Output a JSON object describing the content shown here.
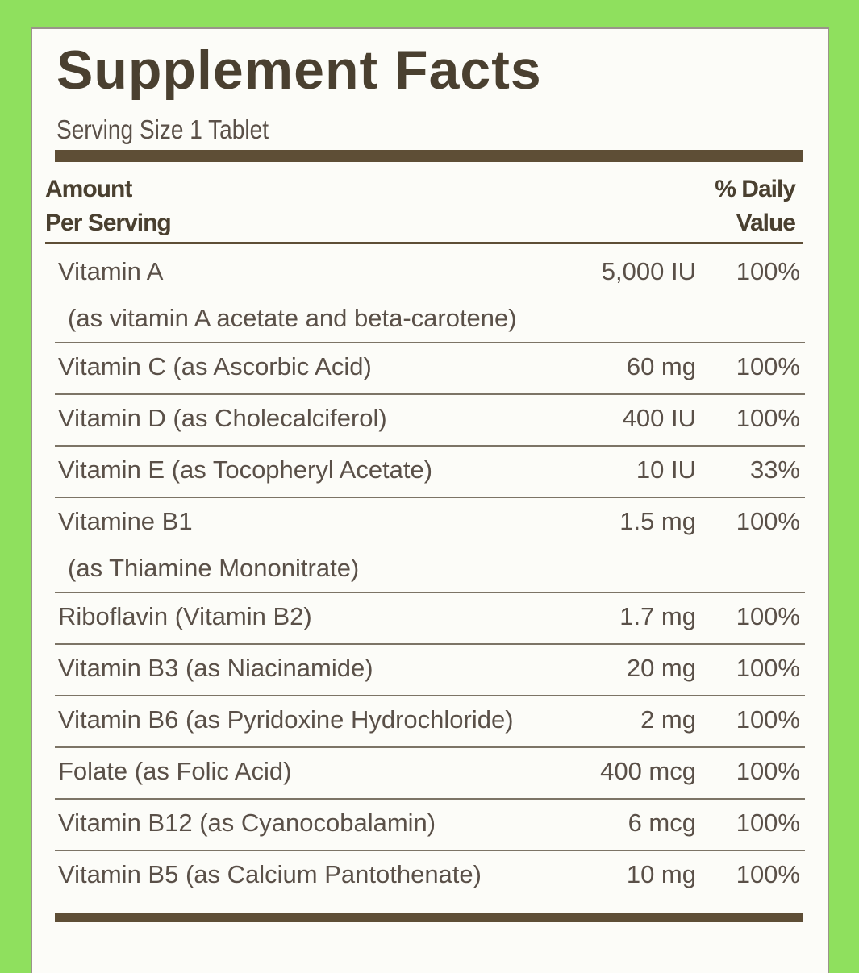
{
  "title": "Supplement Facts",
  "serving_size": "Serving Size 1 Tablet",
  "header": {
    "amount": [
      "Amount",
      "Per Serving"
    ],
    "daily_value": [
      "% Daily",
      "Value"
    ]
  },
  "rows": [
    {
      "lines": [
        "Vitamin A",
        "(as vitamin A acetate and beta-carotene)"
      ],
      "amount": "5,000 IU",
      "dv": "100%"
    },
    {
      "lines": [
        "Vitamin C (as Ascorbic Acid)"
      ],
      "amount": "60 mg",
      "dv": "100%"
    },
    {
      "lines": [
        "Vitamin D (as Cholecalciferol)"
      ],
      "amount": "400 IU",
      "dv": "100%"
    },
    {
      "lines": [
        "Vitamin E (as Tocopheryl Acetate)"
      ],
      "amount": "10 IU",
      "dv": "33%"
    },
    {
      "lines": [
        "Vitamine B1",
        "(as Thiamine Mononitrate)"
      ],
      "amount": "1.5 mg",
      "dv": "100%"
    },
    {
      "lines": [
        "Riboflavin (Vitamin B2)"
      ],
      "amount": "1.7 mg",
      "dv": "100%"
    },
    {
      "lines": [
        "Vitamin B3 (as Niacinamide)"
      ],
      "amount": "20 mg",
      "dv": "100%"
    },
    {
      "lines": [
        "Vitamin B6 (as Pyridoxine Hydrochloride)"
      ],
      "amount": "2 mg",
      "dv": "100%"
    },
    {
      "lines": [
        "Folate (as Folic Acid)"
      ],
      "amount": "400 mcg",
      "dv": "100%"
    },
    {
      "lines": [
        "Vitamin B12 (as Cyanocobalamin)"
      ],
      "amount": "6 mcg",
      "dv": "100%"
    },
    {
      "lines": [
        "Vitamin B5 (as Calcium Pantothenate)"
      ],
      "amount": "10 mg",
      "dv": "100%"
    }
  ]
}
